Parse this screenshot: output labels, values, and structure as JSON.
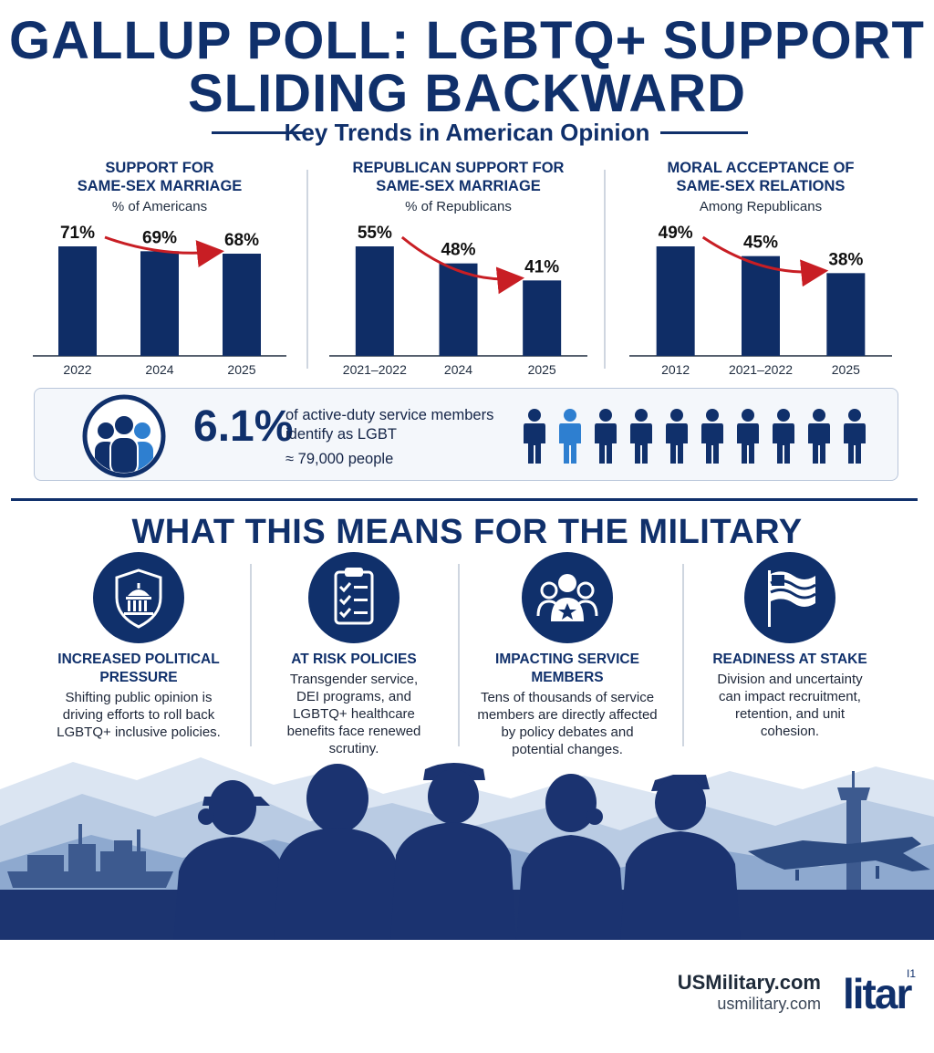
{
  "header": {
    "title_line1": "GALLUP POLL: LGBTQ+ SUPPORT",
    "title_line2": "SLIDING BACKWARD",
    "subtitle": "Key Trends in American Opinion"
  },
  "chart_data": [
    {
      "type": "bar",
      "title_line1": "SUPPORT FOR",
      "title_line2": "SAME-SEX MARRIAGE",
      "subtitle": "% of Americans",
      "categories": [
        "2022",
        "2024",
        "2025"
      ],
      "values": [
        71,
        69,
        68
      ],
      "labels": [
        "71%",
        "69%",
        "68%"
      ],
      "trend_arrow": true
    },
    {
      "type": "bar",
      "title_line1": "REPUBLICAN SUPPORT FOR",
      "title_line2": "SAME-SEX MARRIAGE",
      "subtitle": "% of Republicans",
      "categories": [
        "2021–2022",
        "2024",
        "2025"
      ],
      "values": [
        55,
        48,
        41
      ],
      "labels": [
        "55%",
        "48%",
        "41%"
      ],
      "trend_arrow": true
    },
    {
      "type": "bar",
      "title_line1": "MORAL ACCEPTANCE OF",
      "title_line2": "SAME-SEX RELATIONS",
      "subtitle": "Among Republicans",
      "categories": [
        "2012",
        "2021–2022",
        "2025"
      ],
      "values": [
        49,
        45,
        38
      ],
      "labels": [
        "49%",
        "45%",
        "38%"
      ],
      "trend_arrow": true
    }
  ],
  "stat": {
    "value": "6.1%",
    "line1": "of active-duty service members",
    "line2": "identify as LGBT",
    "line3": "≈ 79,000 people",
    "icon": "group-people-icon",
    "people_count": 10,
    "highlighted_index": 1
  },
  "military": {
    "section_title": "WHAT THIS MEANS FOR THE MILITARY",
    "items": [
      {
        "icon": "capitol-shield-icon",
        "title_line1": "INCREASED POLITICAL PRESSURE",
        "title_line2": "",
        "text": [
          "Shifting public opinion is",
          "driving efforts to roll back",
          "LGBTQ+ inclusive policies."
        ]
      },
      {
        "icon": "clipboard-checklist-icon",
        "title_line1": "AT RISK POLICIES",
        "title_line2": "",
        "text": [
          "Transgender service,",
          "DEI programs, and",
          "LGBTQ+ healthcare",
          "benefits face renewed",
          "scrutiny."
        ]
      },
      {
        "icon": "service-members-star-icon",
        "title_line1": "IMPACTING SERVICE",
        "title_line2": "MEMBERS",
        "text": [
          "Tens of thousands of service",
          "members are directly affected",
          "by policy debates and",
          "potential changes."
        ]
      },
      {
        "icon": "flag-icon",
        "title_line1": "READINESS AT STAKE",
        "title_line2": "",
        "text": [
          "Division and uncertainty",
          "can impact recruitment,",
          "retention, and unit",
          "cohesion."
        ]
      }
    ]
  },
  "footer": {
    "brand": "USMilitary.com",
    "url": "usmilitary.com",
    "logo_text": "litar",
    "logo_mark": "I1"
  },
  "colors": {
    "navy": "#10306b",
    "bar": "#0f2d66",
    "arrow": "#c81e24",
    "highlight_person": "#2e7fd0",
    "mountain_light": "#c9d7ea",
    "silhouette": "#1c3470"
  }
}
